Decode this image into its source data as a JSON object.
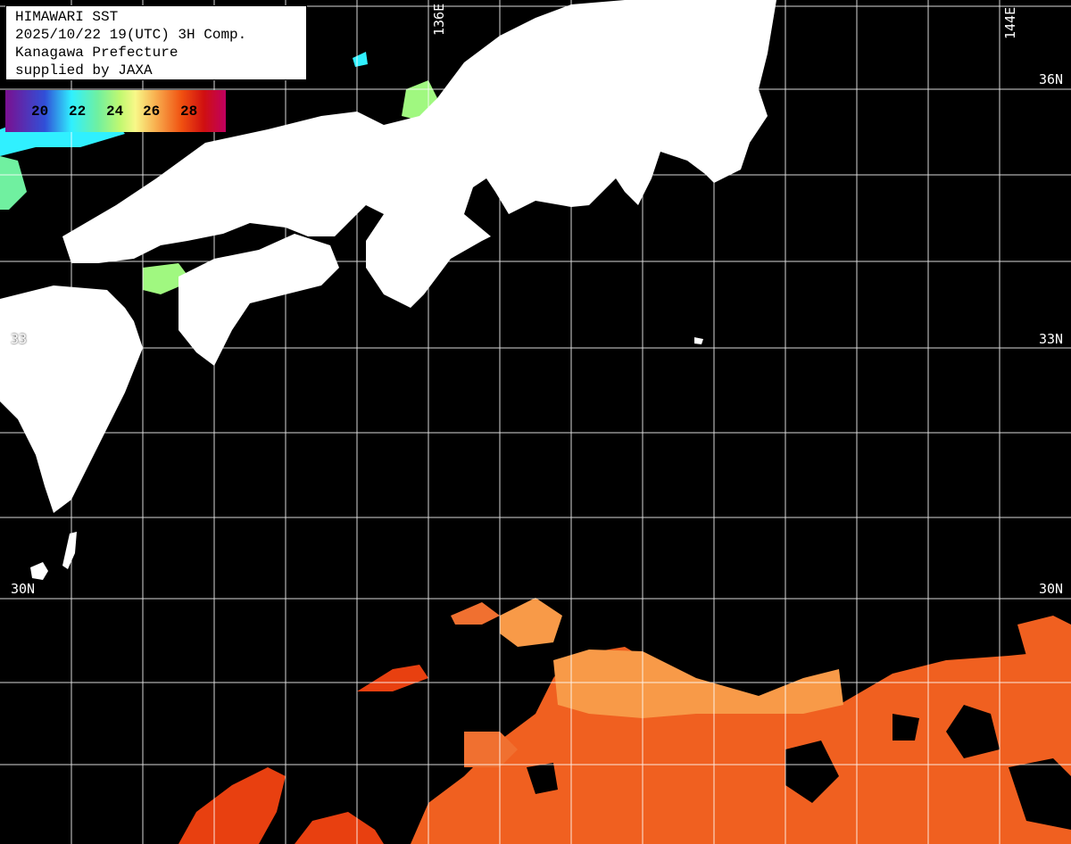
{
  "info": {
    "title": "HIMAWARI SST",
    "datetime": "2025/10/22 19(UTC) 3H Comp.",
    "region": "Kanagawa Prefecture",
    "credit": "supplied by JAXA"
  },
  "legend": {
    "ticks": [
      "20",
      "22",
      "24",
      "26",
      "28"
    ],
    "colors": [
      "#7a1090",
      "#3050d8",
      "#30f0ff",
      "#70f0a0",
      "#c0f870",
      "#f8f888",
      "#f8b050",
      "#f05010",
      "#d01010",
      "#c00060"
    ]
  },
  "grid_labels": {
    "lon_136": "136E",
    "lon_144": "144E",
    "lat_36": "36N",
    "lat_33_right": "33N",
    "lat_33_left": "33",
    "lat_30_left": "30N",
    "lat_30_right": "30N"
  },
  "colors": {
    "land": "#ffffff",
    "ocean_nodata": "#000000",
    "grid": "#ffffff",
    "sst_warm": "#f06020",
    "sst_light": "#f8a050"
  }
}
